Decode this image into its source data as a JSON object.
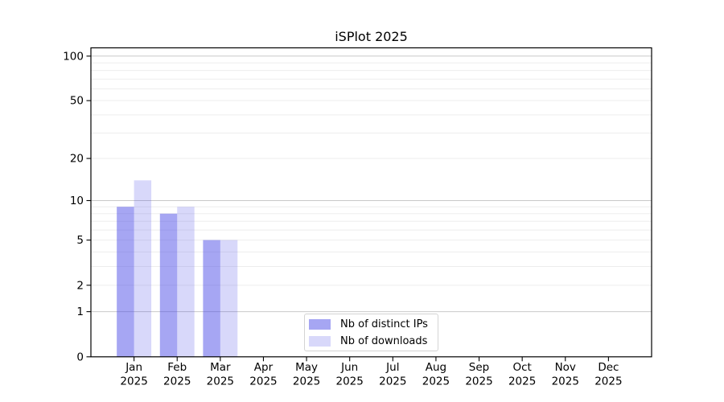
{
  "chart_data": {
    "type": "bar",
    "title": "iSPlot 2025",
    "categories": [
      "Jan 2025",
      "Feb 2025",
      "Mar 2025",
      "Apr 2025",
      "May 2025",
      "Jun 2025",
      "Jul 2025",
      "Aug 2025",
      "Sep 2025",
      "Oct 2025",
      "Nov 2025",
      "Dec 2025"
    ],
    "series": [
      {
        "name": "Nb of distinct IPs",
        "color": "rgba(70,70,230,0.48)",
        "values": [
          9,
          8,
          5,
          0,
          0,
          0,
          0,
          0,
          0,
          0,
          0,
          0
        ]
      },
      {
        "name": "Nb of downloads",
        "color": "rgba(70,70,230,0.21)",
        "values": [
          14,
          9,
          5,
          0,
          0,
          0,
          0,
          0,
          0,
          0,
          0,
          0
        ]
      }
    ],
    "y_axis": {
      "scale": "log1p",
      "ticks": [
        100,
        50,
        20,
        10,
        5,
        2,
        1,
        0
      ],
      "ylim": [
        0,
        113
      ],
      "major_gridlines": [
        1,
        10,
        100
      ],
      "minor_gridlines": [
        2,
        3,
        4,
        5,
        6,
        7,
        8,
        9,
        20,
        30,
        40,
        50,
        60,
        70,
        80,
        90
      ],
      "grid": "horizontal"
    },
    "legend": {
      "position": "lower-center"
    }
  },
  "colors": {
    "background": "#ffffff",
    "spine": "#000000",
    "tick_text": "#000000",
    "major_grid": "#c9c9c9",
    "minor_grid": "#ededed",
    "legend_border": "#d4d4d4"
  }
}
